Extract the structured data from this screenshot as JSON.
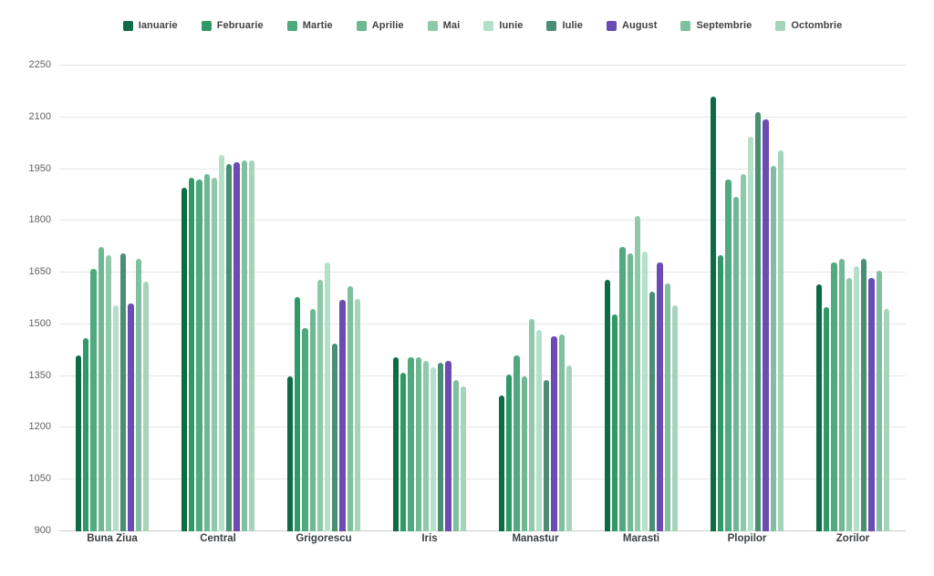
{
  "page": {
    "background": "#ffffff"
  },
  "styles": {
    "grid_color": "#e6e6e6",
    "axis_line_color": "#cccccc",
    "tick_label_color": "#616161",
    "category_label_color": "#3c4043",
    "legend_label_color": "#424242"
  },
  "chart_data": {
    "type": "bar",
    "title": "",
    "xlabel": "",
    "ylabel": "",
    "grid": true,
    "legend_position": "top",
    "ylim": [
      900,
      2250
    ],
    "y_ticks": [
      900,
      1050,
      1200,
      1350,
      1500,
      1650,
      1800,
      1950,
      2100,
      2250
    ],
    "categories": [
      "Buna Ziua",
      "Central",
      "Grigorescu",
      "Iris",
      "Manastur",
      "Marasti",
      "Plopilor",
      "Zorilor"
    ],
    "series": [
      {
        "name": "Ianuarie",
        "color": "#0d6b45",
        "values": [
          1410,
          1895,
          1350,
          1405,
          1295,
          1630,
          2160,
          1615
        ]
      },
      {
        "name": "Februarie",
        "color": "#2f9a67",
        "values": [
          1460,
          1925,
          1580,
          1360,
          1355,
          1530,
          1700,
          1550
        ]
      },
      {
        "name": "Martie",
        "color": "#50a97f",
        "values": [
          1660,
          1920,
          1490,
          1405,
          1410,
          1725,
          1920,
          1680
        ]
      },
      {
        "name": "Aprilie",
        "color": "#6fb894",
        "values": [
          1725,
          1935,
          1545,
          1405,
          1350,
          1705,
          1870,
          1690
        ]
      },
      {
        "name": "Mai",
        "color": "#8ecaa9",
        "values": [
          1700,
          1925,
          1630,
          1395,
          1515,
          1815,
          1935,
          1635
        ]
      },
      {
        "name": "Iunie",
        "color": "#b4e0c9",
        "values": [
          1555,
          1990,
          1680,
          1375,
          1485,
          1710,
          2045,
          1670
        ]
      },
      {
        "name": "Iulie",
        "color": "#4a8e73",
        "values": [
          1705,
          1965,
          1445,
          1390,
          1340,
          1595,
          2115,
          1690
        ]
      },
      {
        "name": "August",
        "color": "#6b4cb3",
        "values": [
          1560,
          1970,
          1570,
          1395,
          1465,
          1680,
          2095,
          1635
        ]
      },
      {
        "name": "Septembrie",
        "color": "#7ec0a0",
        "values": [
          1690,
          1975,
          1610,
          1340,
          1470,
          1620,
          1960,
          1655
        ]
      },
      {
        "name": "Octombrie",
        "color": "#a5d4bb",
        "values": [
          1625,
          1975,
          1575,
          1320,
          1380,
          1555,
          2005,
          1545
        ]
      }
    ]
  }
}
